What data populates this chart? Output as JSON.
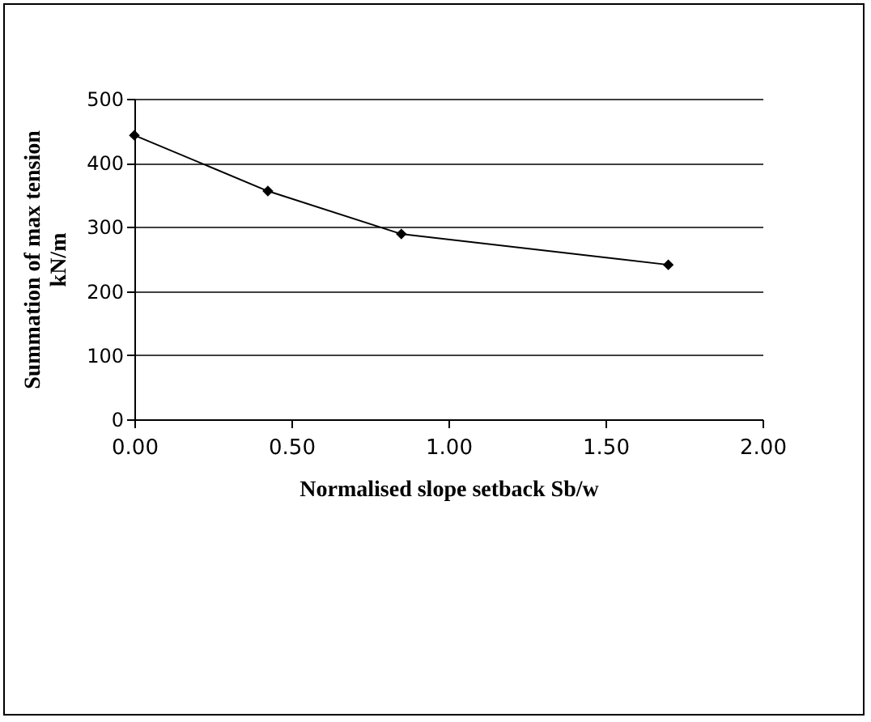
{
  "chart_data": {
    "type": "line",
    "xlabel": "Normalised slope setback Sb/w",
    "ylabel": "Summation of max tension\nkN/m",
    "x": [
      0,
      0.425,
      0.85,
      1.7
    ],
    "series": [
      {
        "color": "#000000",
        "values": [
          443,
          356,
          289,
          241
        ]
      }
    ],
    "xlim": [
      0,
      2
    ],
    "xticks": [
      {
        "value": 0,
        "label": "0.00"
      },
      {
        "value": 0.5,
        "label": "0.50"
      },
      {
        "value": 1,
        "label": "1.00"
      },
      {
        "value": 1.5,
        "label": "1.50"
      },
      {
        "value": 2,
        "label": "2.00"
      }
    ],
    "ylim": [
      0,
      500
    ],
    "yticks": [
      0,
      100,
      200,
      300,
      400,
      500
    ],
    "grid": "y",
    "marker": "diamond",
    "line_style": "solid"
  }
}
